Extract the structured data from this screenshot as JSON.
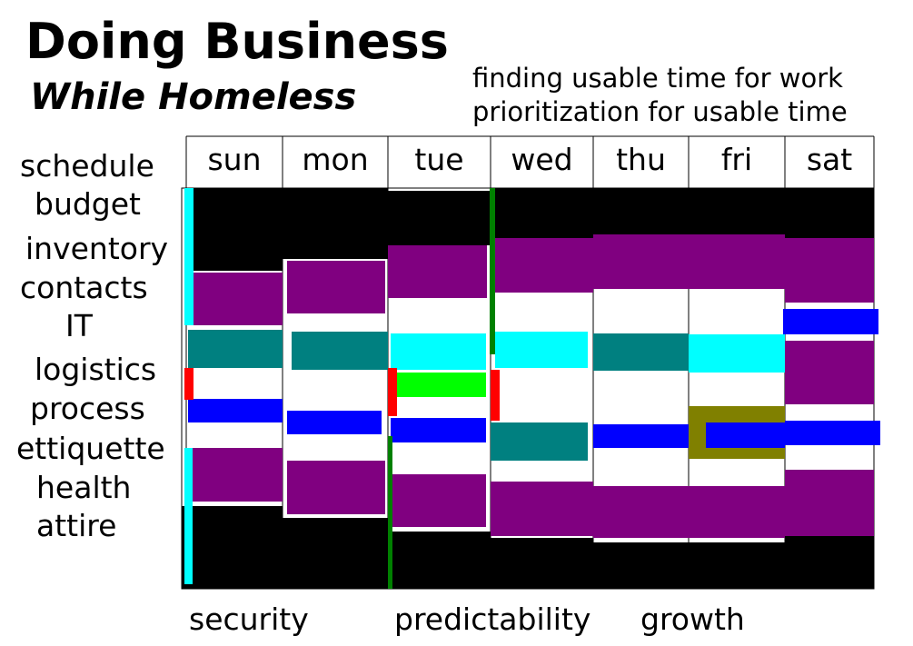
{
  "header": {
    "title": "Doing Business",
    "subtitle": "While Homeless",
    "notes": [
      "finding usable time for work",
      "prioritization for usable time"
    ]
  },
  "days": [
    "sun",
    "mon",
    "tue",
    "wed",
    "thu",
    "fri",
    "sat"
  ],
  "rows": [
    "schedule",
    "budget",
    "inventory",
    "contacts",
    "IT",
    "logistics",
    "process",
    "ettiquette",
    "health",
    "attire"
  ],
  "footer": [
    "security",
    "predictability",
    "growth"
  ]
}
